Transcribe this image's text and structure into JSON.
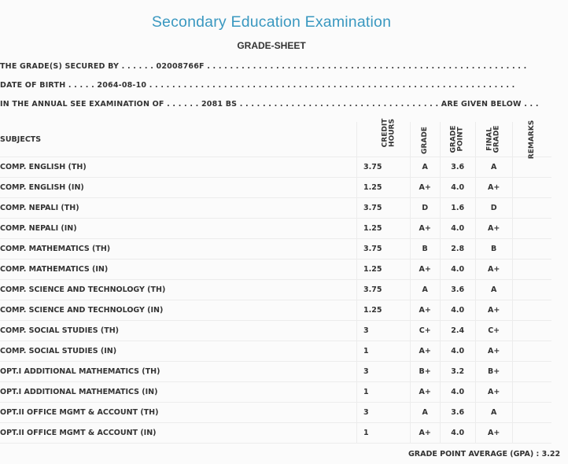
{
  "header": {
    "title": "Secondary Education Examination",
    "subtitle": "GRADE-SHEET"
  },
  "info": {
    "grade_secured_by": "THE GRADE(S) SECURED BY . . . . . . 02008766F . . . . . . . . . . . . . . . . . . . . . . . . . . . . . . . . . . . . . . . . . . . . . . . . . . . . . . . .",
    "date_of_birth": "DATE OF BIRTH . . . . . 2064-08-10 . . . . . . . . . . . . . . . . . . . . . . . . . . . . . . . . . . . . . . . . . . . . . . . . . . . . . . . . . . . . . . . .",
    "exam_line": "IN THE ANNUAL SEE EXAMINATION OF . . . . . . 2081 BS . . . . . . . . . . . . . . . . . . . . . . . . . . . . . . . . . . . ARE GIVEN BELOW . . ."
  },
  "table": {
    "headers": {
      "subjects": "SUBJECTS",
      "credit_hours_1": "CREDIT",
      "credit_hours_2": "HOURS",
      "grade": "GRADE",
      "grade_point_1": "GRADE",
      "grade_point_2": "POINT",
      "final_grade_1": "FINAL",
      "final_grade_2": "GRADE",
      "remarks": "REMARKS"
    },
    "rows": [
      {
        "subject": "COMP. ENGLISH (TH)",
        "credit": "3.75",
        "grade": "A",
        "point": "3.6",
        "final": "A"
      },
      {
        "subject": "COMP. ENGLISH (IN)",
        "credit": "1.25",
        "grade": "A+",
        "point": "4.0",
        "final": "A+"
      },
      {
        "subject": "COMP. NEPALI (TH)",
        "credit": "3.75",
        "grade": "D",
        "point": "1.6",
        "final": "D"
      },
      {
        "subject": "COMP. NEPALI (IN)",
        "credit": "1.25",
        "grade": "A+",
        "point": "4.0",
        "final": "A+"
      },
      {
        "subject": "COMP. MATHEMATICS (TH)",
        "credit": "3.75",
        "grade": "B",
        "point": "2.8",
        "final": "B"
      },
      {
        "subject": "COMP. MATHEMATICS (IN)",
        "credit": "1.25",
        "grade": "A+",
        "point": "4.0",
        "final": "A+"
      },
      {
        "subject": "COMP. SCIENCE AND TECHNOLOGY (TH)",
        "credit": "3.75",
        "grade": "A",
        "point": "3.6",
        "final": "A"
      },
      {
        "subject": "COMP. SCIENCE AND TECHNOLOGY (IN)",
        "credit": "1.25",
        "grade": "A+",
        "point": "4.0",
        "final": "A+"
      },
      {
        "subject": "COMP. SOCIAL STUDIES (TH)",
        "credit": "3",
        "grade": "C+",
        "point": "2.4",
        "final": "C+"
      },
      {
        "subject": "COMP. SOCIAL STUDIES (IN)",
        "credit": "1",
        "grade": "A+",
        "point": "4.0",
        "final": "A+"
      },
      {
        "subject": "OPT.I ADDITIONAL MATHEMATICS (TH)",
        "credit": "3",
        "grade": "B+",
        "point": "3.2",
        "final": "B+"
      },
      {
        "subject": "OPT.I ADDITIONAL MATHEMATICS (IN)",
        "credit": "1",
        "grade": "A+",
        "point": "4.0",
        "final": "A+"
      },
      {
        "subject": "OPT.II OFFICE MGMT & ACCOUNT (TH)",
        "credit": "3",
        "grade": "A",
        "point": "3.6",
        "final": "A"
      },
      {
        "subject": "OPT.II OFFICE MGMT & ACCOUNT (IN)",
        "credit": "1",
        "grade": "A+",
        "point": "4.0",
        "final": "A+"
      }
    ]
  },
  "footer": {
    "gpa": "GRADE POINT AVERAGE (GPA) : 3.22"
  }
}
